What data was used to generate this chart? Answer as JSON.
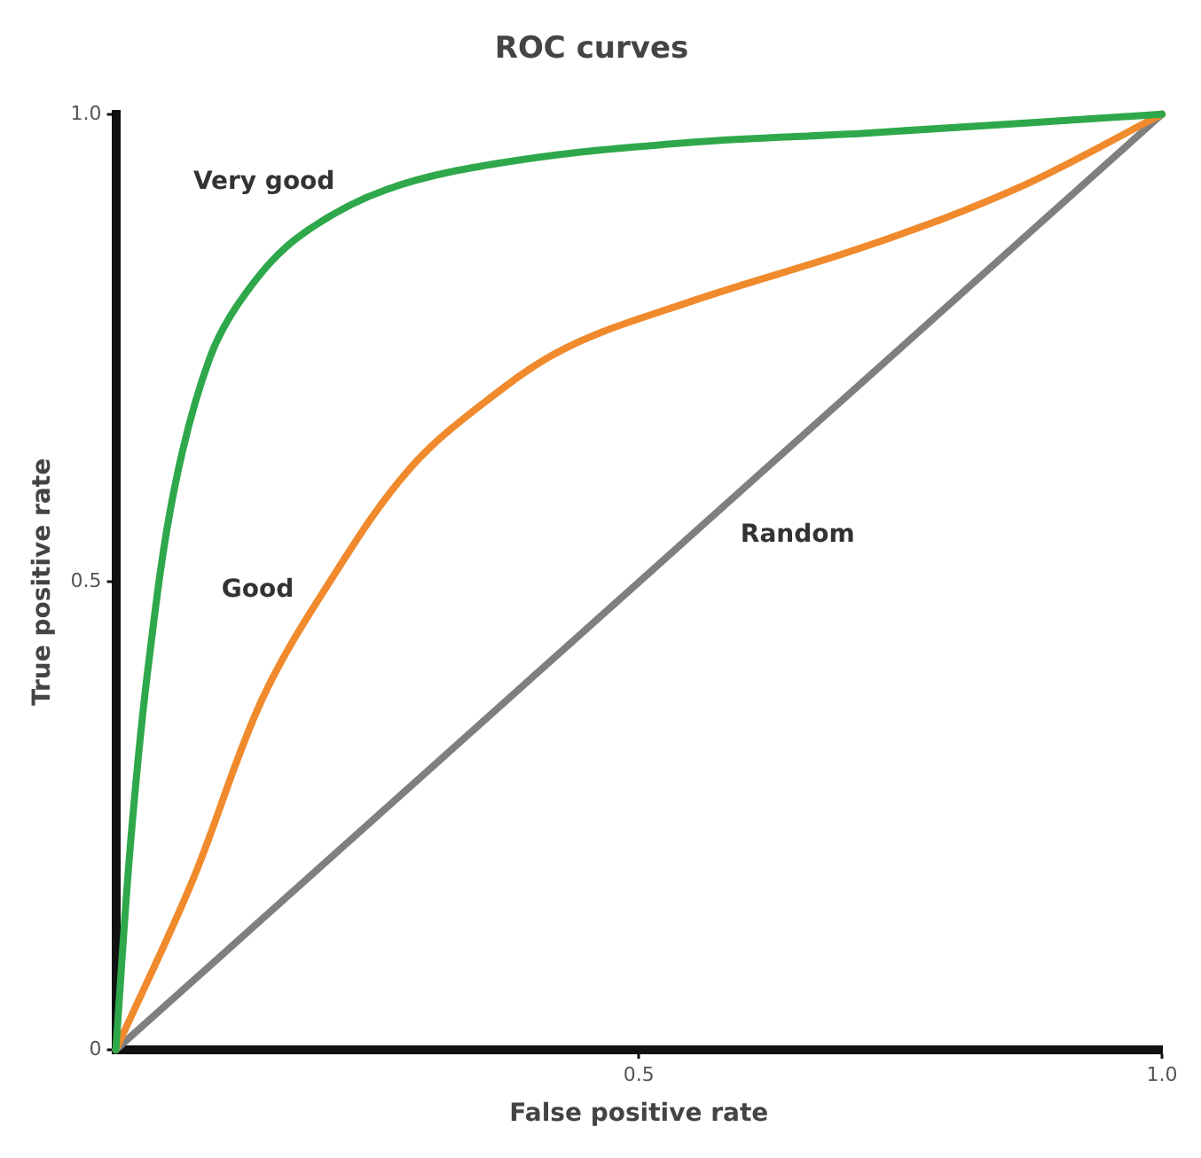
{
  "chart_data": {
    "type": "line",
    "title": "ROC curves",
    "xlabel": "False positive rate",
    "ylabel": "True positive rate",
    "xlim": [
      0,
      1.0
    ],
    "ylim": [
      0,
      1.0
    ],
    "xticks": [
      0.5,
      {
        "value": 1.0,
        "label": "1.0"
      }
    ],
    "yticks": [
      0,
      0.5,
      {
        "value": 1.0,
        "label": "1.0"
      }
    ],
    "grid": false,
    "legend": false,
    "marker": "none",
    "line_style": "solid",
    "series": [
      {
        "name": "Very good",
        "color": "#2ea84a",
        "x": [
          0,
          0.014,
          0.031,
          0.056,
          0.09,
          0.125,
          0.176,
          0.26,
          0.38,
          0.55,
          0.72,
          1.0
        ],
        "values": [
          0,
          0.22,
          0.41,
          0.6,
          0.74,
          0.81,
          0.87,
          0.92,
          0.95,
          0.97,
          0.98,
          1.0
        ]
      },
      {
        "name": "Good",
        "color": "#f08a2c",
        "x": [
          0,
          0.073,
          0.14,
          0.21,
          0.28,
          0.35,
          0.43,
          0.55,
          0.72,
          0.86,
          1.0
        ],
        "values": [
          0,
          0.18,
          0.375,
          0.51,
          0.62,
          0.69,
          0.75,
          0.8,
          0.86,
          0.92,
          1.0
        ]
      },
      {
        "name": "Random",
        "color": "#7f7f7f",
        "x": [
          0,
          1.0
        ],
        "values": [
          0,
          1.0
        ]
      }
    ]
  }
}
